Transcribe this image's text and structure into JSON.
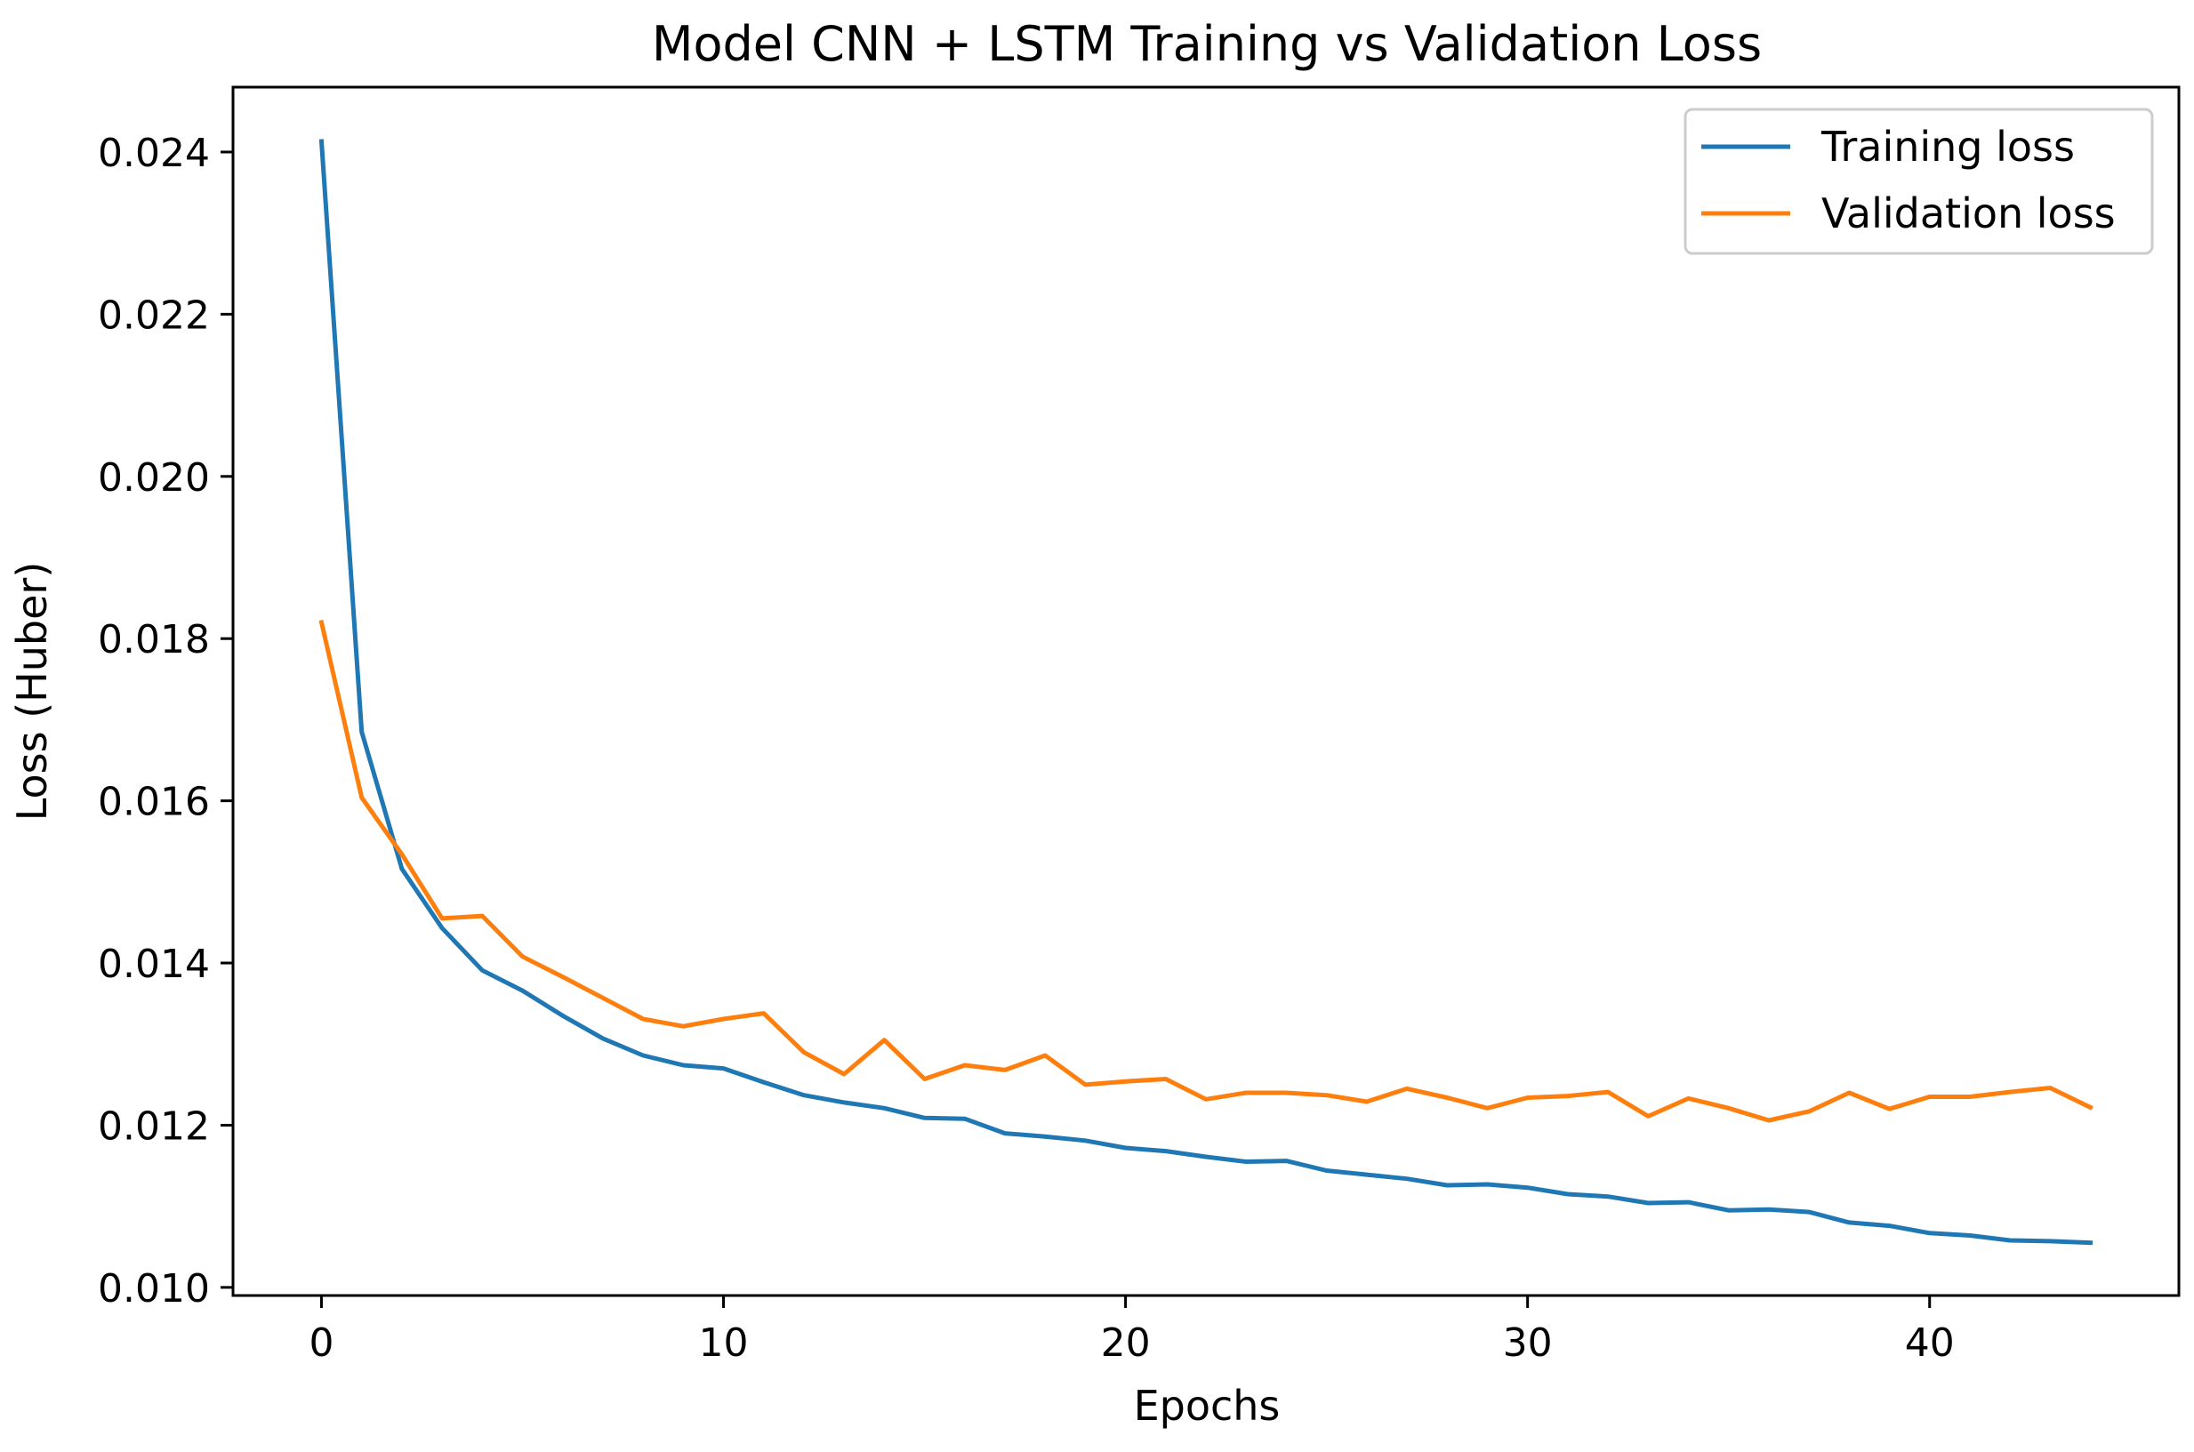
{
  "chart_data": {
    "type": "line",
    "title": "Model CNN + LSTM Training vs Validation Loss",
    "xlabel": "Epochs",
    "ylabel": "Loss (Huber)",
    "xlim": [
      -2.2,
      46.2
    ],
    "ylim": [
      0.0099,
      0.0248
    ],
    "xticks": [
      0,
      10,
      20,
      30,
      40
    ],
    "xtick_labels": [
      "0",
      "10",
      "20",
      "30",
      "40"
    ],
    "yticks": [
      0.01,
      0.012,
      0.014,
      0.016,
      0.018,
      0.02,
      0.022,
      0.024
    ],
    "ytick_labels": [
      "0.010",
      "0.012",
      "0.014",
      "0.016",
      "0.018",
      "0.020",
      "0.022",
      "0.024"
    ],
    "grid": false,
    "legend_position": "top-right",
    "x": [
      0,
      1,
      2,
      3,
      4,
      5,
      6,
      7,
      8,
      9,
      10,
      11,
      12,
      13,
      14,
      15,
      16,
      17,
      18,
      19,
      20,
      21,
      22,
      23,
      24,
      25,
      26,
      27,
      28,
      29,
      30,
      31,
      32,
      33,
      34,
      35,
      36,
      37,
      38,
      39,
      40,
      41,
      42,
      43,
      44
    ],
    "series": [
      {
        "name": "Training loss",
        "color": "#1f77b4",
        "values": [
          0.02413,
          0.01685,
          0.01516,
          0.01443,
          0.01391,
          0.01366,
          0.01335,
          0.01307,
          0.01286,
          0.01274,
          0.0127,
          0.01253,
          0.01237,
          0.01228,
          0.01221,
          0.01209,
          0.01208,
          0.0119,
          0.01186,
          0.01181,
          0.01172,
          0.01168,
          0.01161,
          0.01155,
          0.01156,
          0.01144,
          0.01139,
          0.01134,
          0.01126,
          0.01127,
          0.01123,
          0.01115,
          0.01112,
          0.01104,
          0.01105,
          0.01095,
          0.01096,
          0.01093,
          0.0108,
          0.01076,
          0.01067,
          0.01064,
          0.01058,
          0.01057,
          0.01055
        ]
      },
      {
        "name": "Validation loss",
        "color": "#ff7f0e",
        "values": [
          0.0182,
          0.01604,
          0.01534,
          0.01455,
          0.01458,
          0.01408,
          0.01383,
          0.01357,
          0.01331,
          0.01322,
          0.01331,
          0.01338,
          0.0129,
          0.01263,
          0.01305,
          0.01257,
          0.01274,
          0.01268,
          0.01286,
          0.0125,
          0.01254,
          0.01257,
          0.01232,
          0.0124,
          0.0124,
          0.01237,
          0.01229,
          0.01245,
          0.01234,
          0.01221,
          0.01234,
          0.01236,
          0.01241,
          0.01211,
          0.01233,
          0.01221,
          0.01206,
          0.01217,
          0.0124,
          0.0122,
          0.01235,
          0.01235,
          0.01241,
          0.01246,
          0.01222
        ]
      }
    ]
  }
}
